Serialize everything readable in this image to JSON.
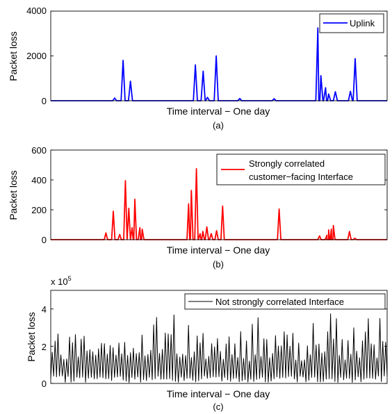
{
  "chart_data": [
    {
      "id": "a",
      "type": "line",
      "ylabel": "Packet loss",
      "xlabel": "Time interval − One day",
      "caption": "(a)",
      "ylim": [
        0,
        4000
      ],
      "yticks": [
        0,
        2000,
        4000
      ],
      "ytick_labels": [
        "0",
        "2000",
        "4000"
      ],
      "x_range": [
        0,
        1000
      ],
      "legend": {
        "entries": [
          "Uplink"
        ],
        "placement": "top-right"
      },
      "grid": false,
      "series": [
        {
          "name": "Uplink",
          "color": "#0000ff",
          "peaks": [
            [
              190,
              120
            ],
            [
              215,
              1800
            ],
            [
              237,
              870
            ],
            [
              430,
              1600
            ],
            [
              453,
              1320
            ],
            [
              466,
              150
            ],
            [
              492,
              2000
            ],
            [
              562,
              100
            ],
            [
              664,
              90
            ],
            [
              794,
              3250
            ],
            [
              803,
              1120
            ],
            [
              817,
              580
            ],
            [
              826,
              300
            ],
            [
              846,
              400
            ],
            [
              891,
              420
            ],
            [
              905,
              1880
            ]
          ]
        }
      ]
    },
    {
      "id": "b",
      "type": "line",
      "ylabel": "Packet loss",
      "xlabel": "Time interval − One day",
      "caption": "(b)",
      "ylim": [
        0,
        600
      ],
      "yticks": [
        0,
        200,
        400,
        600
      ],
      "ytick_labels": [
        "0",
        "200",
        "400",
        "600"
      ],
      "x_range": [
        0,
        1000
      ],
      "legend": {
        "entries": [
          "Strongly correlated",
          "customer−facing Interface"
        ],
        "placement": "top-right"
      },
      "grid": false,
      "series": [
        {
          "name": "Strongly correlated customer−facing Interface",
          "color": "#ff0000",
          "peaks": [
            [
              164,
              45
            ],
            [
              186,
              190
            ],
            [
              205,
              35
            ],
            [
              222,
              395
            ],
            [
              232,
              210
            ],
            [
              242,
              80
            ],
            [
              250,
              270
            ],
            [
              265,
              80
            ],
            [
              272,
              70
            ],
            [
              410,
              240
            ],
            [
              418,
              330
            ],
            [
              433,
              475
            ],
            [
              444,
              40
            ],
            [
              452,
              55
            ],
            [
              464,
              85
            ],
            [
              477,
              40
            ],
            [
              493,
              60
            ],
            [
              511,
              225
            ],
            [
              679,
              205
            ],
            [
              799,
              25
            ],
            [
              821,
              30
            ],
            [
              826,
              65
            ],
            [
              834,
              70
            ],
            [
              840,
              95
            ],
            [
              888,
              55
            ],
            [
              904,
              10
            ]
          ]
        }
      ]
    },
    {
      "id": "c",
      "type": "line",
      "ylabel": "Packet loss",
      "xlabel": "Time interval − One day",
      "caption": "(c)",
      "exponent_label": "x 10",
      "exponent_power": "5",
      "ylim": [
        0,
        5
      ],
      "yticks": [
        0,
        2,
        4
      ],
      "ytick_labels": [
        "0",
        "2",
        "4"
      ],
      "x_range": [
        0,
        1000
      ],
      "legend": {
        "entries": [
          "Not strongly correlated Interface"
        ],
        "placement": "top-right"
      },
      "grid": false,
      "series": [
        {
          "name": "Not strongly correlated Interface",
          "color": "#000000",
          "note": "oscillating values between ~0 and ~3.8 (x 10^5)"
        }
      ]
    }
  ]
}
